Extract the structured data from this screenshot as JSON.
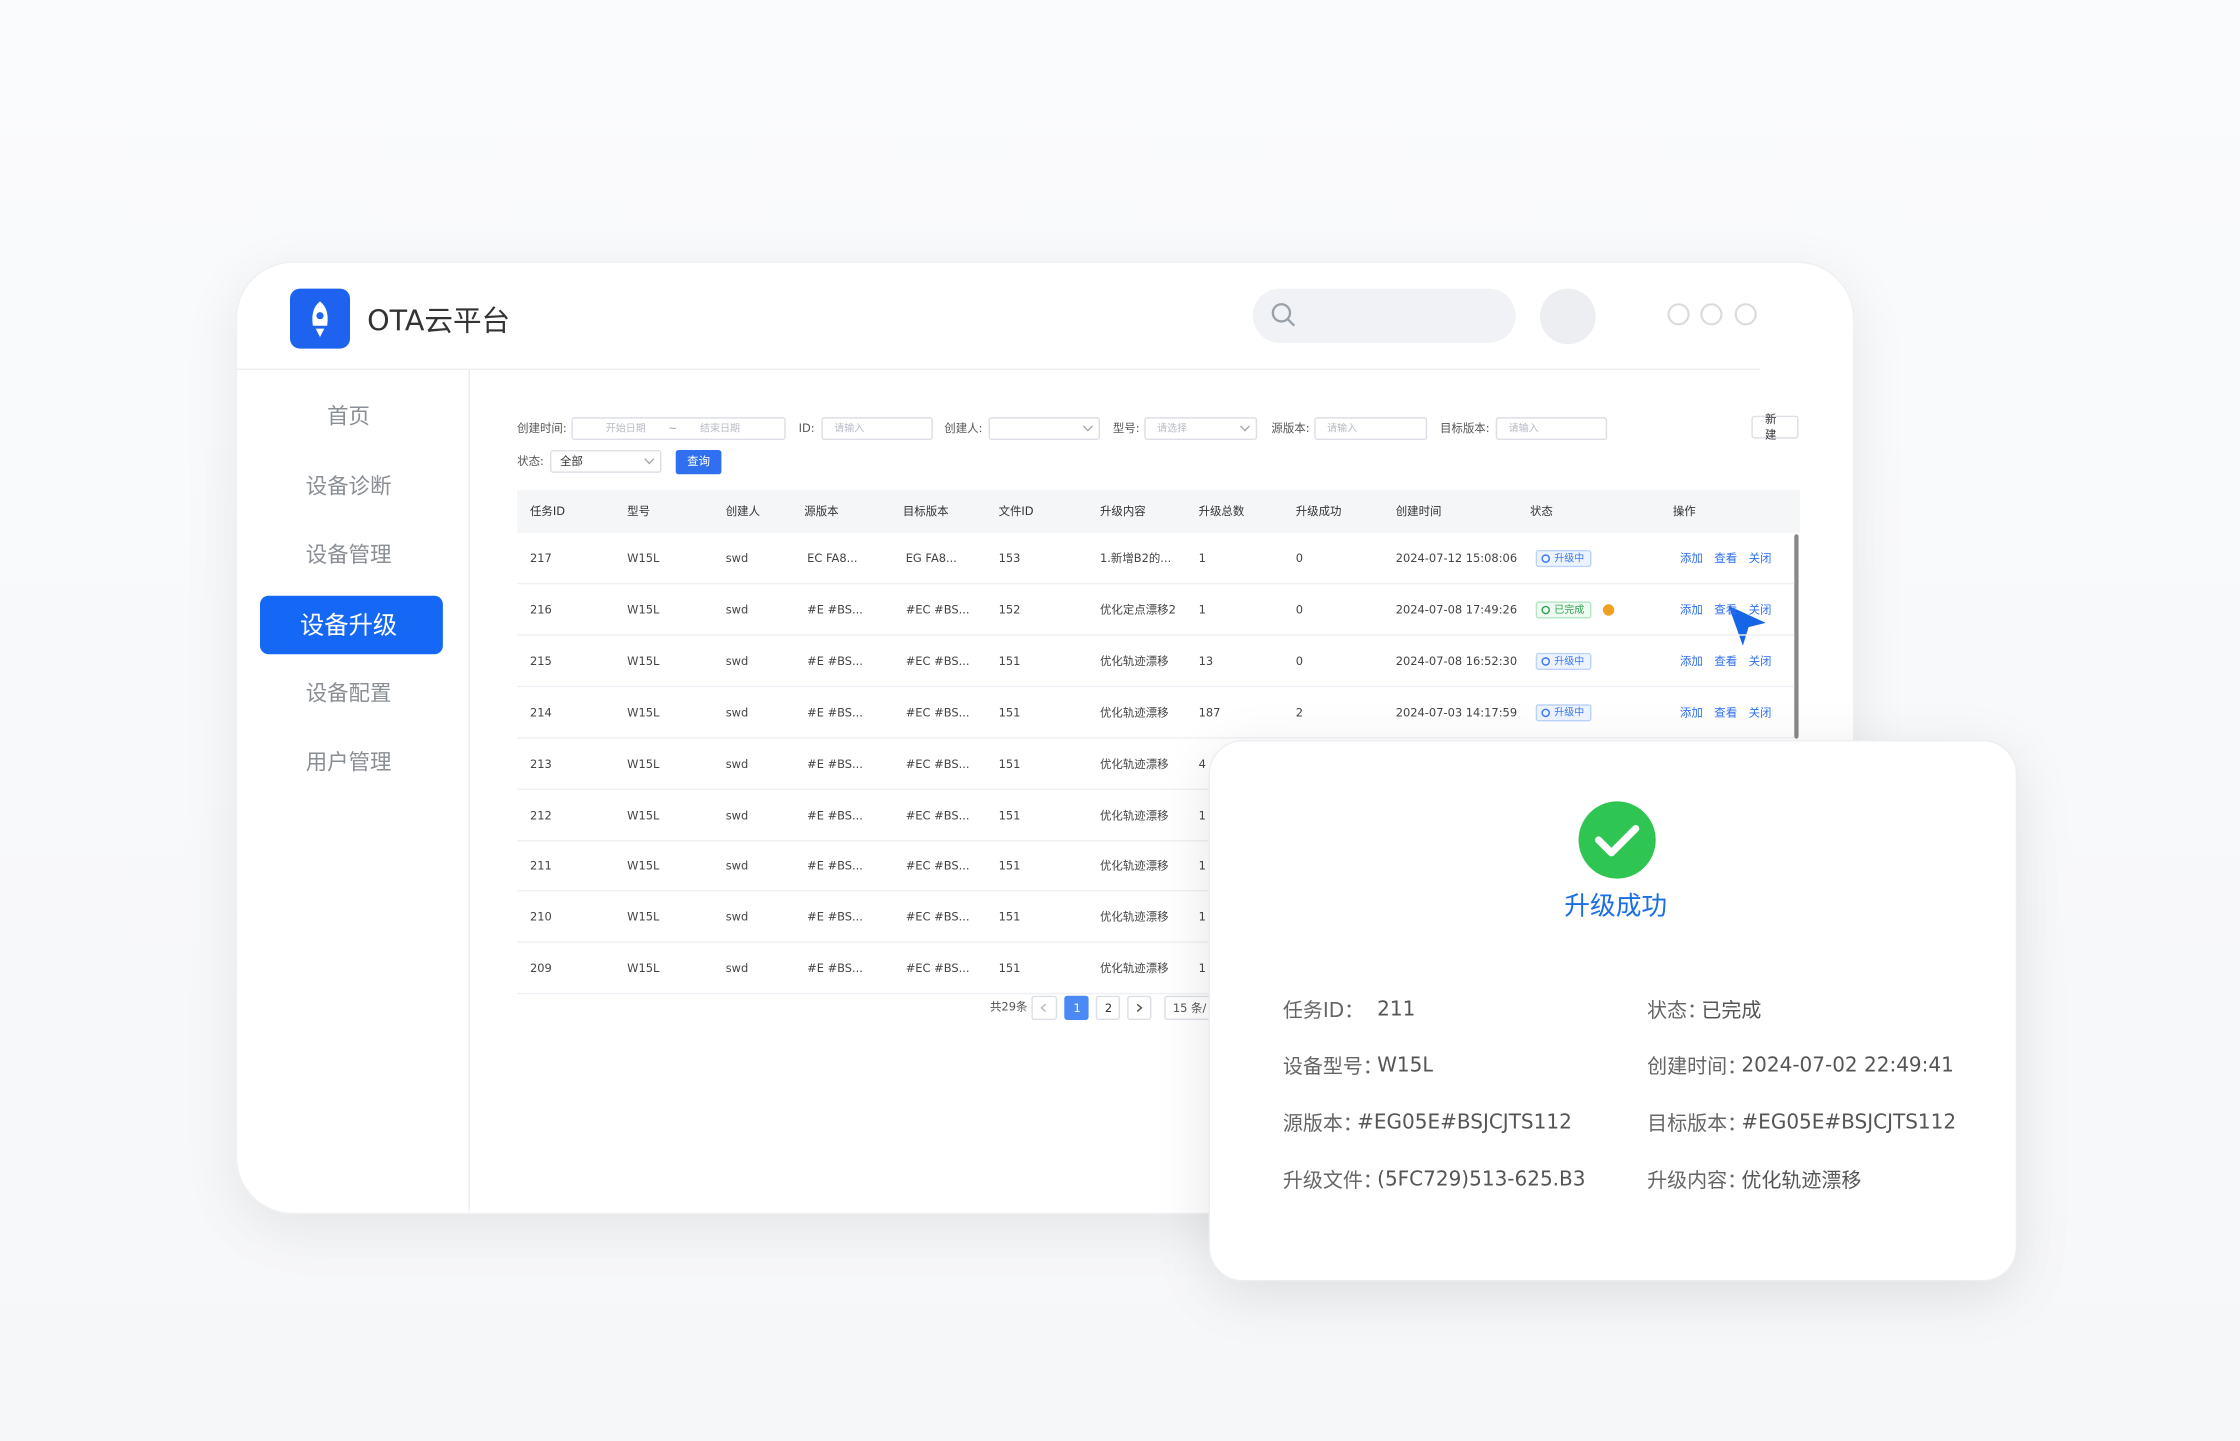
{
  "header": {
    "title": "OTA云平台"
  },
  "nav": {
    "items": [
      "首页",
      "设备诊断",
      "设备管理",
      "设备升级",
      "设备配置",
      "用户管理"
    ],
    "active": 3
  },
  "filters": [
    {
      "label": "创建时间:",
      "placeholders": [
        "开始日期",
        "结束日期"
      ],
      "separator": "~"
    },
    {
      "label": "ID:",
      "placeholders": [
        "请输入"
      ]
    },
    {
      "label": "创建人:",
      "select": true
    },
    {
      "label": "型号:",
      "placeholders": [
        "请选择"
      ],
      "select": true
    },
    {
      "label": "源版本:",
      "placeholders": [
        "请输入"
      ]
    },
    {
      "label": "目标版本:",
      "placeholders": [
        "请输入"
      ]
    },
    {
      "label": "状态:",
      "value": "全部",
      "select": true
    }
  ],
  "buttons": {
    "query": "查询",
    "create": "新 建"
  },
  "table": {
    "headers": [
      "任务ID",
      "型号",
      "创建人",
      "源版本",
      "目标版本",
      "文件ID",
      "升级内容",
      "升级总数",
      "升级成功",
      "创建时间",
      "状态",
      "操作"
    ],
    "actions": [
      "添加",
      "查看",
      "关闭"
    ],
    "rows": [
      [
        "217",
        "W15L",
        "swd",
        "EC  FA8...",
        "EG  FA8...",
        "153",
        "1.新增B2的...",
        "1",
        "0",
        "2024-07-12 15:08:06",
        "升级中"
      ],
      [
        "216",
        "W15L",
        "swd",
        "#E  #BS...",
        "#EC  #BS...",
        "152",
        "优化定点漂移2",
        "1",
        "0",
        "2024-07-08 17:49:26",
        "已完成"
      ],
      [
        "215",
        "W15L",
        "swd",
        "#E  #BS...",
        "#EC  #BS...",
        "151",
        "优化轨迹漂移",
        "13",
        "0",
        "2024-07-08 16:52:30",
        "升级中"
      ],
      [
        "214",
        "W15L",
        "swd",
        "#E  #BS...",
        "#EC  #BS...",
        "151",
        "优化轨迹漂移",
        "187",
        "2",
        "2024-07-03 14:17:59",
        "升级中"
      ],
      [
        "213",
        "W15L",
        "swd",
        "#E  #BS...",
        "#EC  #BS...",
        "151",
        "优化轨迹漂移",
        "4"
      ],
      [
        "212",
        "W15L",
        "swd",
        "#E  #BS...",
        "#EC  #BS...",
        "151",
        "优化轨迹漂移",
        "1"
      ],
      [
        "211",
        "W15L",
        "swd",
        "#E  #BS...",
        "#EC  #BS...",
        "151",
        "优化轨迹漂移",
        "1"
      ],
      [
        "210",
        "W15L",
        "swd",
        "#E  #BS...",
        "#EC  #BS...",
        "151",
        "优化轨迹漂移",
        "1"
      ],
      [
        "209",
        "W15L",
        "swd",
        "#E  #BS...",
        "#EC  #BS...",
        "151",
        "优化轨迹漂移",
        "1"
      ]
    ]
  },
  "pagination": {
    "total": "共29条",
    "pages": [
      "1",
      "2"
    ],
    "current": 0,
    "size": "15 条/"
  },
  "modal": {
    "title": "升级成功",
    "fields": [
      [
        "任务ID：",
        "211"
      ],
      [
        "状态：",
        "已完成"
      ],
      [
        "设备型号：",
        "W15L"
      ],
      [
        "创建时间：",
        "2024-07-02 22:49:41"
      ],
      [
        "源版本：",
        "#EG05E#BSJCJTS112"
      ],
      [
        "目标版本：",
        "#EG05E#BSJCJTS112"
      ],
      [
        "升级文件：",
        "(5FC729)513-625.B3"
      ],
      [
        "升级内容：",
        "优化轨迹漂移"
      ]
    ]
  }
}
